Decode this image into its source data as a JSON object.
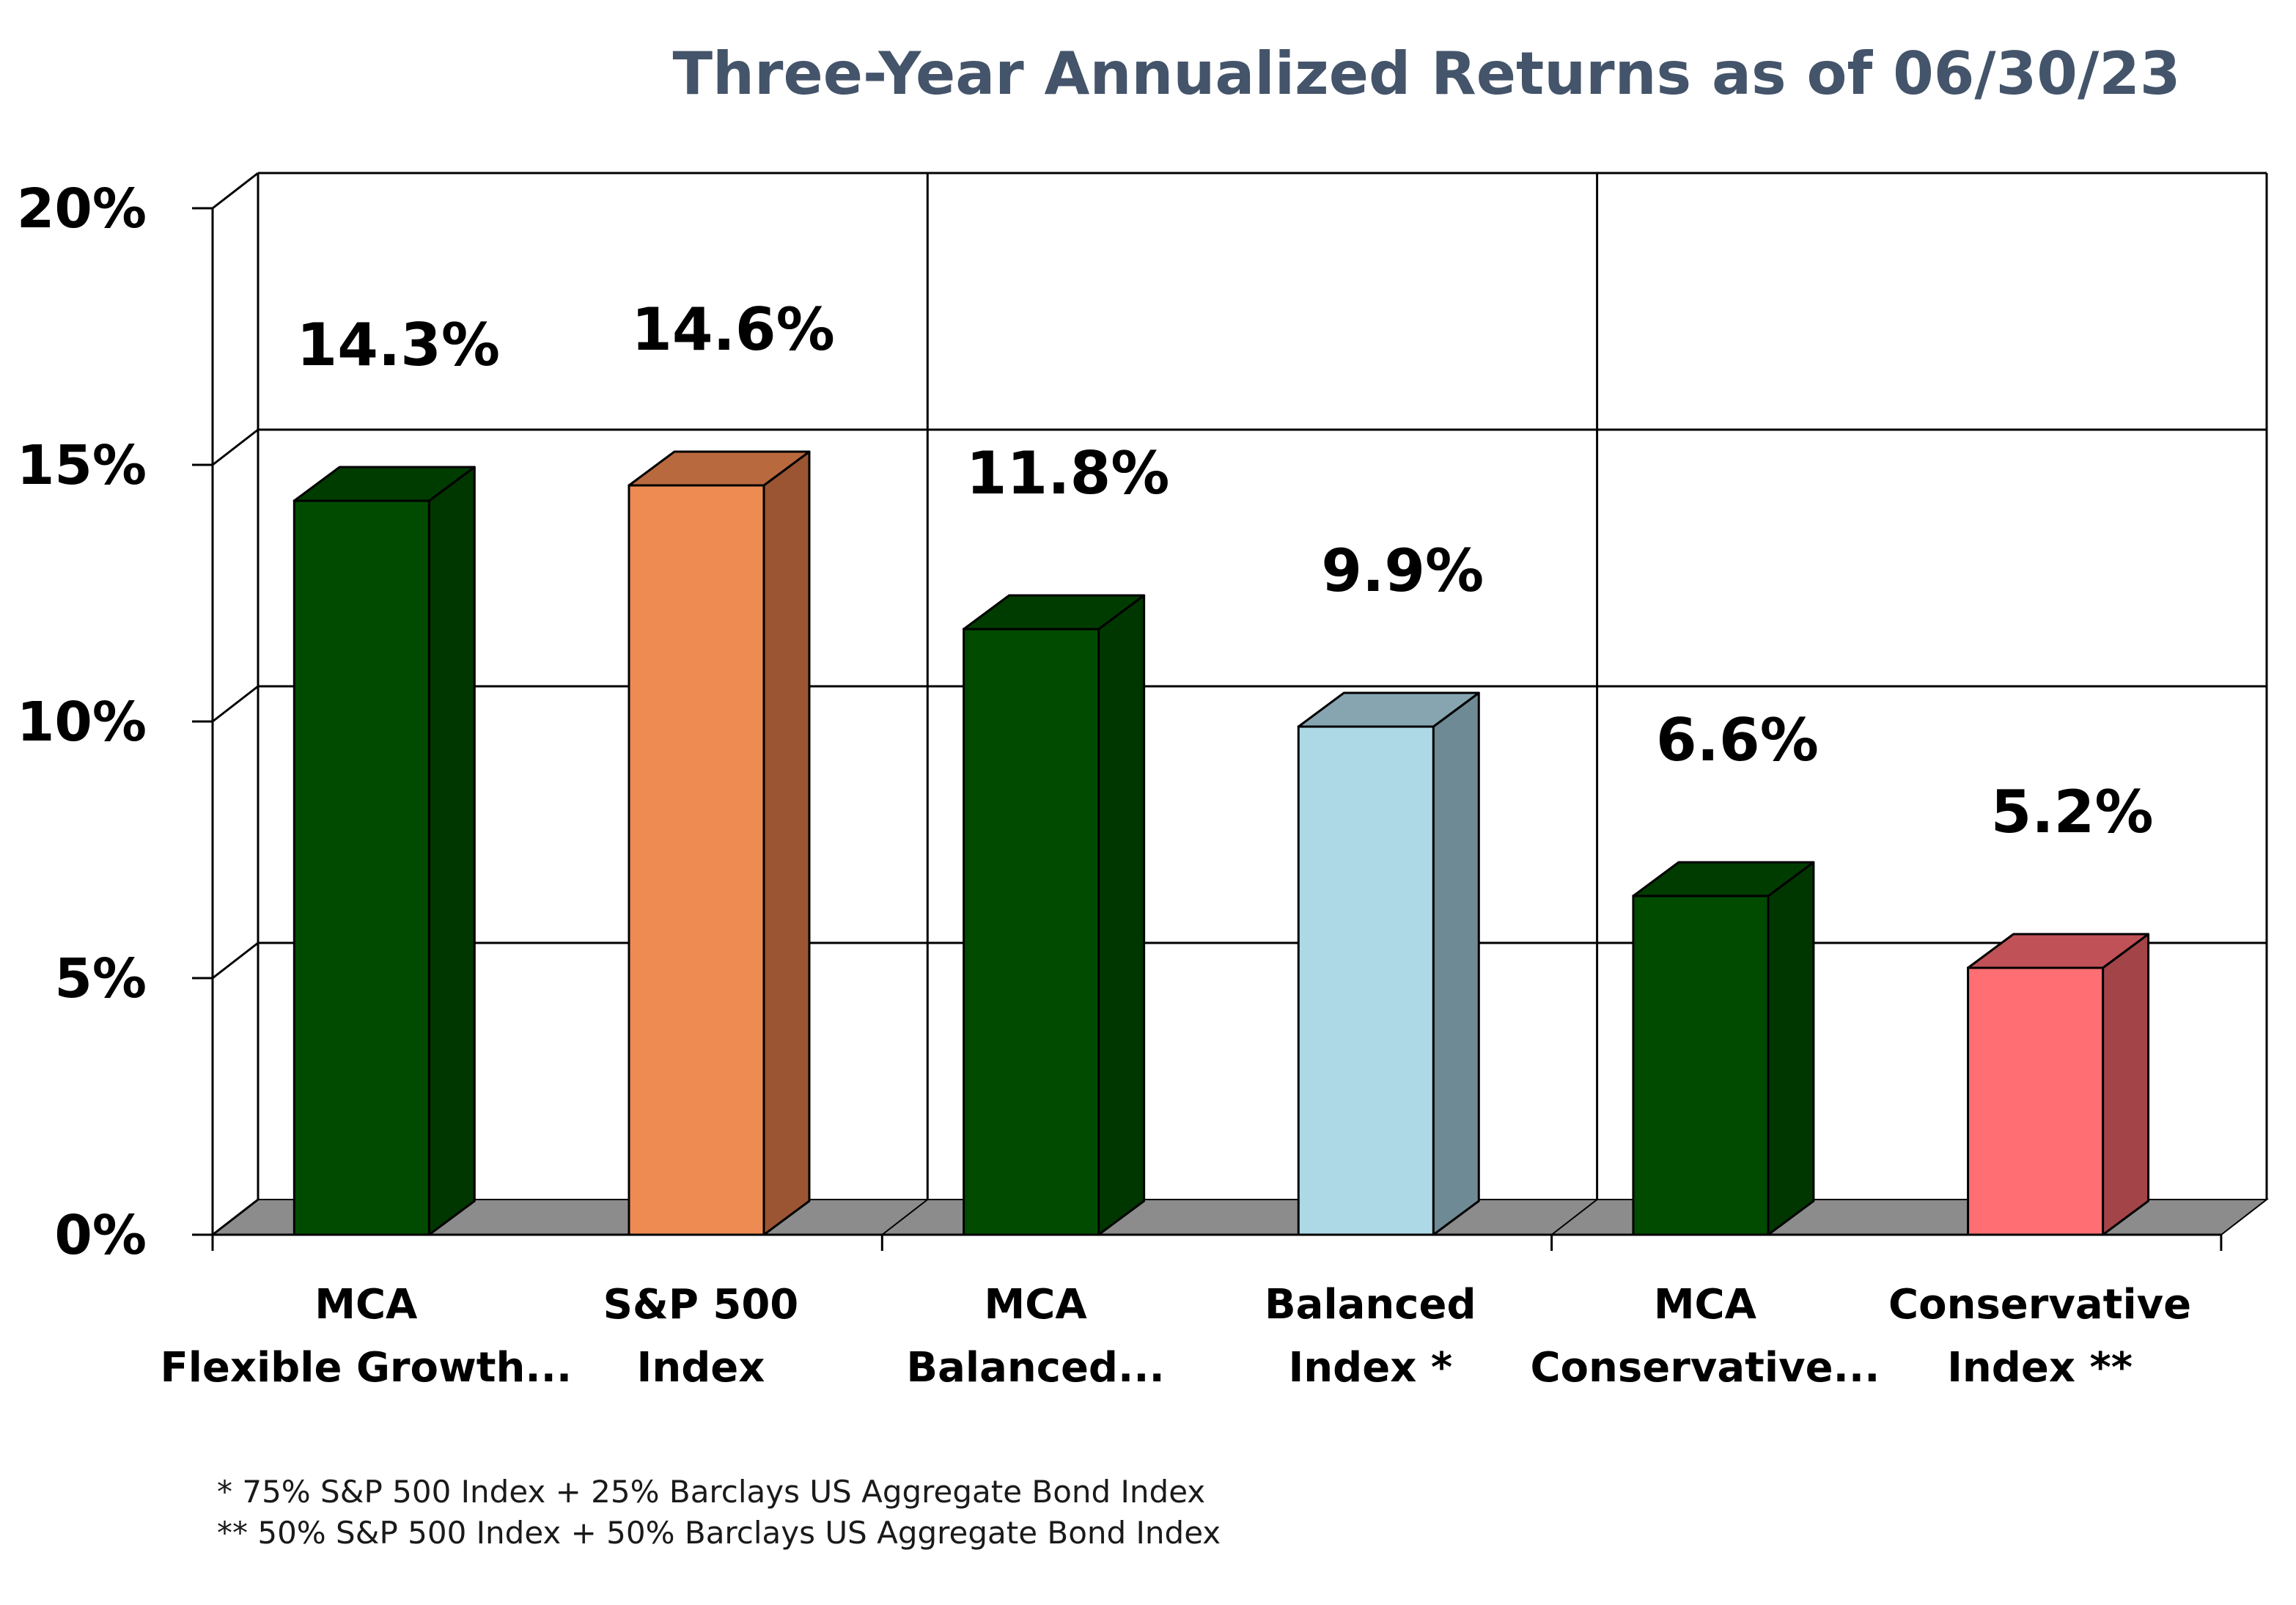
{
  "chart_data": {
    "type": "bar",
    "title": "Three-Year Annualized Returns as of 06/30/23",
    "categories": [
      [
        "MCA",
        "Flexible Growth..."
      ],
      [
        "S&P 500",
        "Index"
      ],
      [
        "MCA",
        "Balanced..."
      ],
      [
        "Balanced",
        "Index *"
      ],
      [
        "MCA",
        "Conservative..."
      ],
      [
        "Conservative",
        "Index **"
      ]
    ],
    "values": [
      14.3,
      14.6,
      11.8,
      9.9,
      6.6,
      5.2
    ],
    "value_labels": [
      "14.3%",
      "14.6%",
      "11.8%",
      "9.9%",
      "6.6%",
      "5.2%"
    ],
    "ylim": [
      0,
      20
    ],
    "yticks": [
      0,
      5,
      10,
      15,
      20
    ],
    "ytick_labels": [
      "0%",
      "5%",
      "10%",
      "15%",
      "20%"
    ],
    "xlabel": "",
    "ylabel": "",
    "grid": true,
    "three_d": true,
    "bar_colors": [
      {
        "front": "#004b00",
        "side": "#003600",
        "top": "#003c00"
      },
      {
        "front": "#ee8b52",
        "side": "#9b5532",
        "top": "#b9693e"
      },
      {
        "front": "#004b00",
        "side": "#003600",
        "top": "#003c00"
      },
      {
        "front": "#add8e6",
        "side": "#6e8a95",
        "top": "#86a5b1"
      },
      {
        "front": "#004b00",
        "side": "#003600",
        "top": "#003c00"
      },
      {
        "front": "#ff6e72",
        "side": "#a24448",
        "top": "#c05257"
      }
    ],
    "floor_color": "#8c8c8c",
    "footnotes": [
      "*   75% S&P 500 Index + 25% Barclays US Aggregate Bond Index",
      "** 50% S&P 500 Index + 50% Barclays US Aggregate Bond Index"
    ]
  }
}
